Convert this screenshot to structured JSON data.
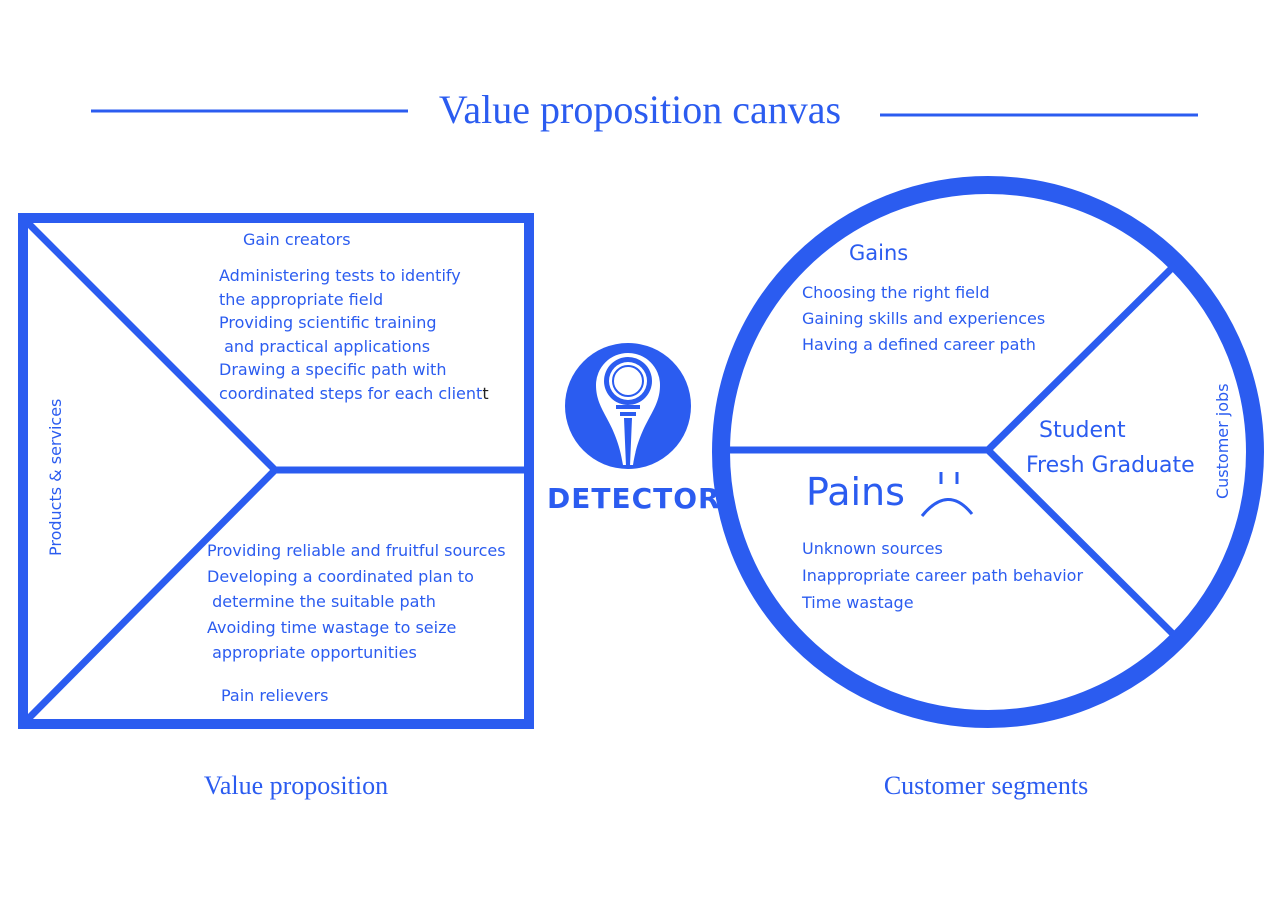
{
  "title": "Value proposition canvas",
  "value_proposition": {
    "label": "Value proposition",
    "side_label": "Products & services",
    "gain_creators": {
      "heading": "Gain creators",
      "lines": [
        "Administering tests to identify",
        "the appropriate field",
        "Providing scientific training",
        " and practical applications",
        "Drawing a specific path with",
        "coordinated steps for each client"
      ],
      "trailing_char": "t"
    },
    "pain_relievers": {
      "heading": "Pain relievers",
      "lines": [
        "Providing reliable and fruitful sources",
        "Developing a coordinated plan to",
        " determine the suitable path",
        "Avoiding time wastage to seize",
        " appropriate opportunities"
      ]
    }
  },
  "logo": {
    "name": "DETECTOR",
    "icon": "magnifier-pin-icon"
  },
  "customer_segments": {
    "label": "Customer segments",
    "side_label": "Customer jobs",
    "jobs": [
      "Student",
      "Fresh Graduate"
    ],
    "gains": {
      "heading": "Gains",
      "lines": [
        "Choosing the right field",
        "Gaining skills and experiences",
        "Having a defined career path"
      ]
    },
    "pains": {
      "heading": "Pains",
      "icon": "sad-face-icon",
      "lines": [
        "Unknown sources",
        "Inappropriate career path behavior",
        "Time wastage"
      ]
    }
  },
  "colors": {
    "accent": "#2b5cf0",
    "background": "#ffffff"
  }
}
